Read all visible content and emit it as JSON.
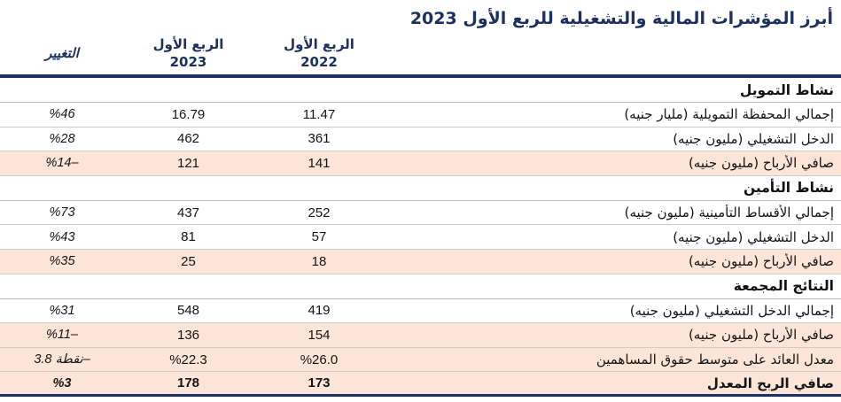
{
  "title": "أبرز المؤشرات المالية والتشغيلية للربع الأول 2023",
  "columns": {
    "change": "التغيير",
    "q1_2023_line1": "الربع الأول",
    "q1_2023_line2": "2023",
    "q1_2022_line1": "الربع الأول",
    "q1_2022_line2": "2022"
  },
  "sections": [
    {
      "header": "نشاط التمويل",
      "rows": [
        {
          "label": "إجمالي المحفظة التمويلية (مليار جنيه)",
          "q1_2022": "11.47",
          "q1_2023": "16.79",
          "change": "%46",
          "highlight": false,
          "bold": false
        },
        {
          "label": "الدخل التشغيلي (مليون جنيه)",
          "q1_2022": "361",
          "q1_2023": "462",
          "change": "%28",
          "highlight": false,
          "bold": false
        },
        {
          "label": "صافي الأرباح (مليون جنيه)",
          "q1_2022": "141",
          "q1_2023": "121",
          "change": "%14–",
          "highlight": true,
          "bold": false
        }
      ]
    },
    {
      "header": "نشاط التأمين",
      "rows": [
        {
          "label": "إجمالي الأقساط التأمينية (مليون جنيه)",
          "q1_2022": "252",
          "q1_2023": "437",
          "change": "%73",
          "highlight": false,
          "bold": false
        },
        {
          "label": "الدخل التشغيلي (مليون جنيه)",
          "q1_2022": "57",
          "q1_2023": "81",
          "change": "%43",
          "highlight": false,
          "bold": false
        },
        {
          "label": "صافي الأرباح (مليون جنيه)",
          "q1_2022": "18",
          "q1_2023": "25",
          "change": "%35",
          "highlight": true,
          "bold": false
        }
      ]
    },
    {
      "header": "النتائج المجمعة",
      "rows": [
        {
          "label": "إجمالي الدخل التشغيلي (مليون جنيه)",
          "q1_2022": "419",
          "q1_2023": "548",
          "change": "%31",
          "highlight": false,
          "bold": false
        },
        {
          "label": "صافي الأرباح (مليون جنيه)",
          "q1_2022": "154",
          "q1_2023": "136",
          "change": "%11–",
          "highlight": true,
          "bold": false
        },
        {
          "label": "معدل العائد على متوسط حقوق المساهمين",
          "q1_2022": "%26.0",
          "q1_2023": "%22.3",
          "change": "نقطة 3.8–",
          "highlight": true,
          "bold": false
        },
        {
          "label": "صافي الربح المعدل",
          "q1_2022": "173",
          "q1_2023": "178",
          "change": "%3",
          "highlight": true,
          "bold": true
        }
      ]
    }
  ],
  "colors": {
    "navy": "#1d3160",
    "highlight_peach": "#FCE4D6",
    "separator_gray": "#cccccc",
    "body_text": "#141414"
  }
}
